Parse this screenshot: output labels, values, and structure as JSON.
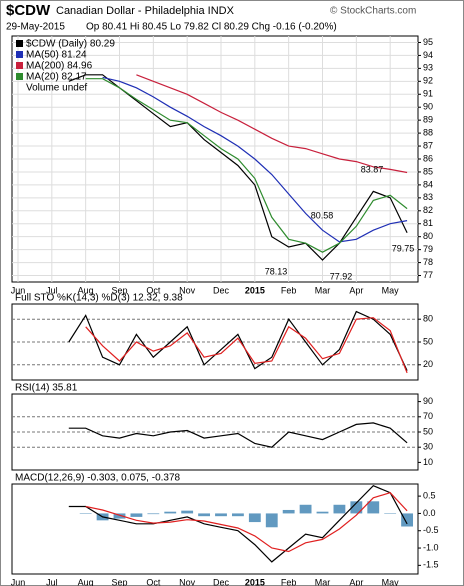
{
  "header": {
    "symbol": "$CDW",
    "name": "Canadian Dollar - Philadelphia INDX",
    "date": "29-May-2015",
    "quote": "Op 80.41 Hi 80.45 Lo 79.82 Cl 80.29 Chg -0.16 (-0.20%)",
    "source": "© StockCharts.com"
  },
  "chart_data": [
    {
      "type": "line",
      "extra_legend": "Volume undef",
      "categories": [
        "Jun",
        null,
        "Jul",
        null,
        "Aug",
        null,
        "Sep",
        null,
        "Oct",
        null,
        "Nov",
        null,
        "Dec",
        null,
        "2015",
        null,
        "Feb",
        null,
        "Mar",
        null,
        "Apr",
        null,
        "May",
        null
      ],
      "ylim": [
        76.5,
        95.5
      ],
      "yticks": [
        77,
        78,
        79,
        80,
        81,
        82,
        83,
        84,
        85,
        86,
        87,
        88,
        89,
        90,
        91,
        92,
        93,
        94,
        95
      ],
      "grid": true,
      "annotations": [
        "83.87",
        "80.58",
        "78.13",
        "77.92",
        "79.75"
      ],
      "series": [
        {
          "name": "$CDW (Daily) 80.29",
          "color": "#000000",
          "values": [
            null,
            null,
            null,
            92,
            92.5,
            92.5,
            91.5,
            90.5,
            89.5,
            88.5,
            88.8,
            87.5,
            86.5,
            85.5,
            84,
            80,
            79.2,
            79.5,
            78.2,
            79.5,
            81.5,
            83.5,
            83,
            80.3
          ]
        },
        {
          "name": "MA(50) 81.24",
          "color": "#1f2fb5",
          "values": [
            null,
            null,
            null,
            null,
            null,
            92.3,
            92,
            91.5,
            90.8,
            90,
            89.3,
            88.5,
            87.8,
            87,
            86,
            84.8,
            83.3,
            81.8,
            80.5,
            79.6,
            79.8,
            80.5,
            81,
            81.24
          ]
        },
        {
          "name": "MA(200) 84.96",
          "color": "#c8203c",
          "values": [
            null,
            null,
            null,
            null,
            null,
            null,
            null,
            92.5,
            92,
            91.5,
            91,
            90.3,
            89.6,
            89,
            88.3,
            87.6,
            87,
            86.8,
            86.4,
            86,
            85.8,
            85.4,
            85.2,
            84.96
          ]
        },
        {
          "name": "MA(20) 82.17",
          "color": "#2e8b2e",
          "values": [
            null,
            null,
            null,
            null,
            92.2,
            92.2,
            91.5,
            90.6,
            89.8,
            89,
            88.8,
            87.8,
            86.8,
            86,
            84.5,
            81.5,
            79.8,
            79.5,
            78.8,
            79.5,
            80.8,
            82.8,
            83.2,
            82.17
          ]
        }
      ]
    },
    {
      "type": "line",
      "title": "Full STO %K(14,3) %D(3) 12.32, 9.38",
      "ylim": [
        0,
        100
      ],
      "yticks": [
        20,
        50,
        80
      ],
      "reference_lines": [
        20,
        50,
        80
      ],
      "series": [
        {
          "color": "#000000",
          "values": [
            null,
            null,
            null,
            50,
            85,
            30,
            20,
            60,
            30,
            50,
            70,
            20,
            40,
            60,
            15,
            30,
            80,
            50,
            20,
            40,
            90,
            80,
            60,
            12.32
          ]
        },
        {
          "color": "#e02020",
          "values": [
            null,
            null,
            null,
            null,
            70,
            45,
            25,
            50,
            38,
            45,
            62,
            30,
            35,
            55,
            22,
            25,
            70,
            55,
            28,
            35,
            80,
            82,
            65,
            9.38
          ]
        }
      ]
    },
    {
      "type": "line",
      "title": "RSI(14) 35.81",
      "ylim": [
        0,
        100
      ],
      "yticks": [
        10,
        30,
        50,
        70,
        90
      ],
      "reference_lines": [
        30,
        50,
        70
      ],
      "series": [
        {
          "color": "#000000",
          "values": [
            null,
            null,
            null,
            55,
            55,
            45,
            42,
            48,
            45,
            50,
            52,
            42,
            45,
            48,
            35,
            30,
            50,
            45,
            40,
            50,
            60,
            62,
            55,
            35.81
          ]
        }
      ]
    },
    {
      "type": "line",
      "title": "MACD(12,26,9) -0.303, 0.075, -0.378",
      "categories": [
        "Jun",
        null,
        "Jul",
        null,
        "Aug",
        null,
        "Sep",
        null,
        "Oct",
        null,
        "Nov",
        null,
        "Dec",
        null,
        "2015",
        null,
        "Feb",
        null,
        "Mar",
        null,
        "Apr",
        null,
        "May",
        null
      ],
      "ylim": [
        -1.75,
        0.85
      ],
      "yticks": [
        {
          "value": -1.5,
          "label": "-1.5"
        },
        {
          "value": -1,
          "label": "-1.0"
        },
        {
          "value": -0.5,
          "label": "-0.5"
        },
        {
          "value": 0,
          "label": "0.0"
        },
        {
          "value": 0.5,
          "label": "0.5"
        }
      ],
      "series": [
        {
          "type": "bar",
          "color": "#3a7fb0",
          "values": [
            null,
            null,
            null,
            null,
            0,
            -0.2,
            -0.15,
            -0.1,
            -0.02,
            0.05,
            0.08,
            -0.08,
            -0.08,
            -0.08,
            -0.25,
            -0.4,
            0.1,
            0.25,
            0.05,
            0.25,
            0.35,
            0.35,
            0,
            -0.378
          ]
        },
        {
          "color": "#000000",
          "values": [
            null,
            null,
            null,
            0.2,
            0.2,
            -0.1,
            -0.2,
            -0.3,
            -0.3,
            -0.2,
            -0.1,
            -0.3,
            -0.4,
            -0.5,
            -0.9,
            -1.4,
            -1,
            -0.6,
            -0.7,
            -0.2,
            0.3,
            0.8,
            0.6,
            -0.303
          ]
        },
        {
          "color": "#e02020",
          "values": [
            null,
            null,
            null,
            null,
            0.2,
            0.1,
            -0.05,
            -0.2,
            -0.28,
            -0.25,
            -0.18,
            -0.22,
            -0.32,
            -0.42,
            -0.65,
            -1,
            -1.1,
            -0.85,
            -0.75,
            -0.45,
            -0.05,
            0.45,
            0.6,
            0.075
          ]
        }
      ]
    }
  ]
}
